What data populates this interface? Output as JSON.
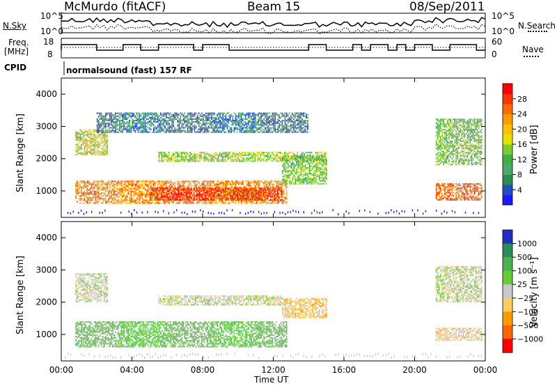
{
  "header": {
    "station": "McMurdo (fitACF)",
    "beam": "Beam 15",
    "date": "08/Sep/2011"
  },
  "top_panels": {
    "nsky_label": "N.Sky",
    "nsearch_label": "N.Search",
    "nsky_ticks": [
      "10^5",
      "10^0"
    ],
    "nsearch_ticks": [
      "10^5",
      "10^0"
    ],
    "freq_label_line1": "Freq.",
    "freq_label_line2": "[MHz]",
    "freq_ticks": [
      "18",
      "8"
    ],
    "nave_label": "Nave",
    "nave_ticks": [
      "60",
      "0"
    ],
    "cpid_label": "CPID",
    "cpid_text": "normalsound (fast) 157 RF"
  },
  "legends": {
    "power": {
      "label": "Power [dB]",
      "ticks": [
        "28",
        "24",
        "20",
        "16",
        "12",
        "8",
        "4"
      ],
      "colors": [
        "#1a1aff",
        "#2050c0",
        "#2e8b57",
        "#4fa86a",
        "#3cb043",
        "#7ccc30",
        "#e6e000",
        "#ffc000",
        "#ff9900",
        "#ff6a00",
        "#ff3300",
        "#ff0000"
      ]
    },
    "velocity": {
      "label": "Velocity [m s⁻¹]",
      "ticks": [
        "1000",
        "500",
        "100",
        "25",
        "−25",
        "−100",
        "−500",
        "−1000"
      ],
      "colors": [
        "#2030c0",
        "#2e8b57",
        "#4caf50",
        "#66cc33",
        "#c8c8c8",
        "#ffcc66",
        "#ff9900",
        "#ff6600",
        "#ff0000"
      ]
    }
  },
  "chart_data": [
    {
      "type": "heatmap",
      "title": "Power",
      "ylabel": "Slant Range [km]",
      "xlabel": "Time UT",
      "ylim": [
        180,
        4500
      ],
      "xlim": [
        "00:00",
        "24:00"
      ],
      "y_ticks": [
        "1000",
        "2000",
        "3000",
        "4000"
      ],
      "x_ticks": [
        "00:00",
        "04:00",
        "08:00",
        "12:00",
        "16:00",
        "20:00",
        "00:00"
      ],
      "colorbar": {
        "label": "Power [dB]",
        "range": [
          0,
          30
        ]
      },
      "regions": [
        {
          "t0": 0.8,
          "t1": 12.8,
          "r0": 600,
          "r1": 1300,
          "value": 22
        },
        {
          "t0": 5.0,
          "t1": 12.5,
          "r0": 700,
          "r1": 1100,
          "value": 27
        },
        {
          "t0": 0.8,
          "t1": 2.6,
          "r0": 2100,
          "r1": 2900,
          "value": 16
        },
        {
          "t0": 5.5,
          "t1": 15.0,
          "r0": 1900,
          "r1": 2200,
          "value": 14
        },
        {
          "t0": 12.5,
          "t1": 15.0,
          "r0": 1200,
          "r1": 2100,
          "value": 12
        },
        {
          "t0": 21.2,
          "t1": 23.8,
          "r0": 700,
          "r1": 1200,
          "value": 24
        },
        {
          "t0": 21.2,
          "t1": 23.8,
          "r0": 1800,
          "r1": 3200,
          "value": 12
        },
        {
          "t0": 2.0,
          "t1": 14.0,
          "r0": 2800,
          "r1": 3400,
          "value": 6
        }
      ]
    },
    {
      "type": "heatmap",
      "title": "Velocity",
      "ylabel": "Slant Range [km]",
      "xlabel": "Time UT",
      "ylim": [
        180,
        4500
      ],
      "xlim": [
        "00:00",
        "24:00"
      ],
      "y_ticks": [
        "1000",
        "2000",
        "3000",
        "4000"
      ],
      "x_ticks": [
        "00:00",
        "04:00",
        "08:00",
        "12:00",
        "16:00",
        "20:00",
        "00:00"
      ],
      "colorbar": {
        "label": "Velocity [m s⁻¹]",
        "range": [
          -1000,
          1000
        ]
      },
      "regions": [
        {
          "t0": 0.8,
          "t1": 12.8,
          "r0": 600,
          "r1": 1400,
          "value": 300
        },
        {
          "t0": 0.8,
          "t1": 2.6,
          "r0": 2000,
          "r1": 2900,
          "value": 0
        },
        {
          "t0": 5.5,
          "t1": 12.5,
          "r0": 1900,
          "r1": 2200,
          "value": 0
        },
        {
          "t0": 12.5,
          "t1": 15.0,
          "r0": 1500,
          "r1": 2100,
          "value": -200
        },
        {
          "t0": 21.2,
          "t1": 23.8,
          "r0": 800,
          "r1": 1200,
          "value": -150
        },
        {
          "t0": 21.2,
          "t1": 23.8,
          "r0": 2000,
          "r1": 3100,
          "value": 0
        }
      ]
    }
  ]
}
